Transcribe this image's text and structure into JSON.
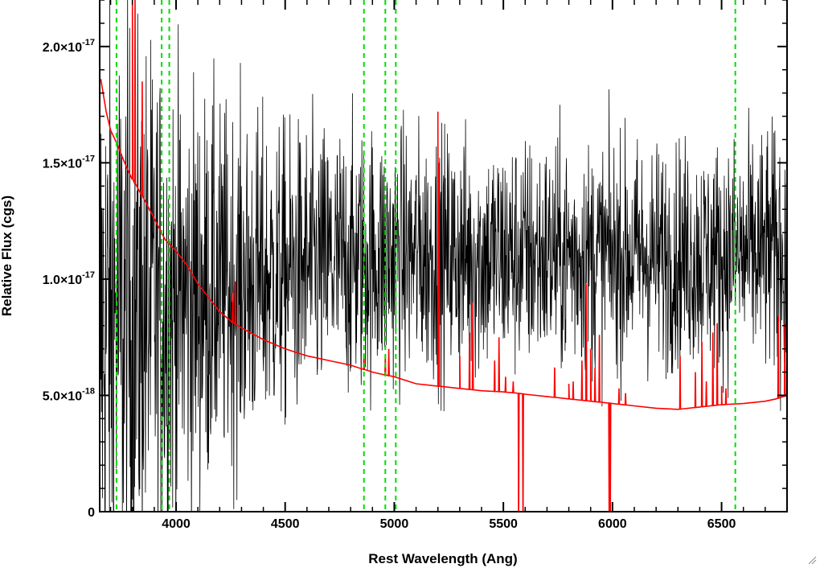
{
  "chart_data": {
    "type": "line",
    "xlabel": "Rest Wavelength (Ang)",
    "ylabel": "Relative Flux (cgs)",
    "xlim": [
      3650,
      6800
    ],
    "ylim": [
      0,
      2.2e-17
    ],
    "x_ticks": [
      {
        "value": 4000,
        "label": "4000"
      },
      {
        "value": 4500,
        "label": "4500"
      },
      {
        "value": 5000,
        "label": "5000"
      },
      {
        "value": 5500,
        "label": "5500"
      },
      {
        "value": 6000,
        "label": "6000"
      },
      {
        "value": 6500,
        "label": "6500"
      }
    ],
    "y_ticks": [
      {
        "value": 0,
        "mantissa": "0",
        "exponent": ""
      },
      {
        "value": 5e-18,
        "mantissa": "5.0×10",
        "exponent": "-18"
      },
      {
        "value": 1e-17,
        "mantissa": "1.0×10",
        "exponent": "-17"
      },
      {
        "value": 1.5e-17,
        "mantissa": "1.5×10",
        "exponent": "-17"
      },
      {
        "value": 2e-17,
        "mantissa": "2.0×10",
        "exponent": "-17"
      }
    ],
    "reference_lines": {
      "color": "#00dd00",
      "style": "dashed",
      "x": [
        3727,
        3934,
        3969,
        4861,
        4959,
        5007,
        6563
      ]
    },
    "series": [
      {
        "color": "#000000",
        "style": "noisy spectrum",
        "mean_curve": {
          "x": [
            3660,
            3750,
            3850,
            4000,
            4200,
            4500,
            4800,
            5000,
            5200,
            5500,
            5800,
            6000,
            6300,
            6600,
            6800
          ],
          "y": [
            8e-18,
            8.3e-18,
            8.6e-18,
            9e-18,
            9.5e-18,
            1.02e-17,
            1.08e-17,
            1.1e-17,
            1.1e-17,
            1.1e-17,
            1.1e-17,
            1.1e-17,
            1.1e-17,
            1.1e-17,
            1.12e-17
          ]
        },
        "scatter_curve": {
          "x": [
            3660,
            3850,
            4000,
            4200,
            4500,
            4800,
            5000,
            5500,
            6000,
            6500,
            6800
          ],
          "y": [
            1.1e-17,
            9.5e-18,
            8e-18,
            6.5e-18,
            5.2e-18,
            4.7e-18,
            4.5e-18,
            4.2e-18,
            4e-18,
            4e-18,
            4.5e-18
          ]
        }
      },
      {
        "color": "#ff0000",
        "style": "model continuum",
        "points": {
          "x": [
            3655,
            3680,
            3700,
            3730,
            3760,
            3800,
            3850,
            3900,
            3950,
            4000,
            4050,
            4100,
            4150,
            4200,
            4250,
            4300,
            4400,
            4500,
            4600,
            4700,
            4800,
            4900,
            5000,
            5100,
            5200,
            5300,
            5400,
            5500,
            5560,
            5600,
            5700,
            5800,
            5900,
            6000,
            6100,
            6200,
            6300,
            6400,
            6500,
            6600,
            6700,
            6750,
            6800
          ],
          "y": [
            1.86e-17,
            1.72e-17,
            1.64e-17,
            1.58e-17,
            1.51e-17,
            1.43e-17,
            1.35e-17,
            1.26e-17,
            1.17e-17,
            1.12e-17,
            1.06e-17,
            9.8e-18,
            9.2e-18,
            8.6e-18,
            8.2e-18,
            7.9e-18,
            7.4e-18,
            7e-18,
            6.7e-18,
            6.5e-18,
            6.3e-18,
            6e-18,
            5.8e-18,
            5.5e-18,
            5.4e-18,
            5.3e-18,
            5.2e-18,
            5.15e-18,
            5.1e-18,
            5.05e-18,
            4.95e-18,
            4.85e-18,
            4.75e-18,
            4.65e-18,
            4.55e-18,
            4.45e-18,
            4.4e-18,
            4.5e-18,
            4.6e-18,
            4.65e-18,
            4.75e-18,
            4.85e-18,
            5e-18
          ]
        },
        "spikes": [
          {
            "x": 3800,
            "y": 2.2e-17
          },
          {
            "x": 3812,
            "y": 2.2e-17
          },
          {
            "x": 3845,
            "y": 1.85e-17
          },
          {
            "x": 4260,
            "y": 9.4e-18
          },
          {
            "x": 4272,
            "y": 9.9e-18
          },
          {
            "x": 4861,
            "y": 6.8e-18
          },
          {
            "x": 4959,
            "y": 6.7e-18
          },
          {
            "x": 4975,
            "y": 7e-18
          },
          {
            "x": 5200,
            "y": 1.72e-17
          },
          {
            "x": 5205,
            "y": 1.5e-17
          },
          {
            "x": 5300,
            "y": 6.7e-18
          },
          {
            "x": 5345,
            "y": 7.7e-18
          },
          {
            "x": 5360,
            "y": 9e-18
          },
          {
            "x": 5460,
            "y": 6.5e-18
          },
          {
            "x": 5480,
            "y": 7.5e-18
          },
          {
            "x": 5510,
            "y": 5.8e-18
          },
          {
            "x": 5545,
            "y": 5.6e-18
          },
          {
            "x": 5570,
            "y": -1e-18
          },
          {
            "x": 5590,
            "y": -1e-18
          },
          {
            "x": 5735,
            "y": 6.2e-18
          },
          {
            "x": 5800,
            "y": 5.5e-18
          },
          {
            "x": 5820,
            "y": 5.6e-18
          },
          {
            "x": 5860,
            "y": 6.5e-18
          },
          {
            "x": 5880,
            "y": 9.8e-18
          },
          {
            "x": 5900,
            "y": 7e-18
          },
          {
            "x": 5920,
            "y": 6.2e-18
          },
          {
            "x": 5940,
            "y": 7.6e-18
          },
          {
            "x": 5985,
            "y": -1e-18
          },
          {
            "x": 5990,
            "y": -1e-18
          },
          {
            "x": 6030,
            "y": 5.3e-18
          },
          {
            "x": 6060,
            "y": 5.1e-18
          },
          {
            "x": 6310,
            "y": 6.7e-18
          },
          {
            "x": 6380,
            "y": 6e-18
          },
          {
            "x": 6410,
            "y": 7.3e-18
          },
          {
            "x": 6430,
            "y": 5.6e-18
          },
          {
            "x": 6460,
            "y": 7.7e-18
          },
          {
            "x": 6480,
            "y": 8.1e-18
          },
          {
            "x": 6500,
            "y": 5.4e-18
          },
          {
            "x": 6520,
            "y": 5.3e-18
          },
          {
            "x": 6760,
            "y": 8.4e-18
          },
          {
            "x": 6790,
            "y": 8.1e-18
          }
        ]
      }
    ]
  }
}
